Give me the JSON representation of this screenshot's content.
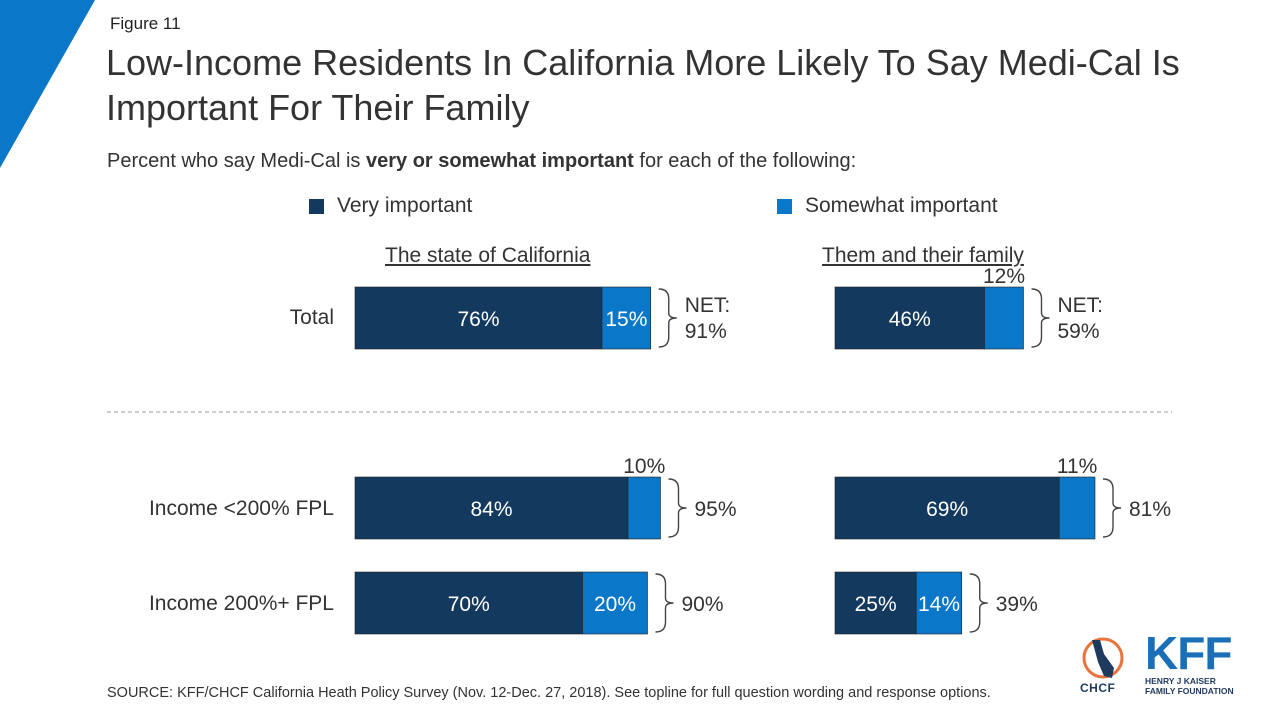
{
  "figure_label": "Figure 11",
  "title": "Low-Income Residents In California More Likely To Say Medi-Cal Is Important For Their Family",
  "subtitle": {
    "prefix": "Percent who say Medi-Cal is ",
    "bold": "very or somewhat important",
    "suffix": " for each of the following:"
  },
  "legend": {
    "very_label": "Very important",
    "somewhat_label": "Somewhat important"
  },
  "colors": {
    "very": "#133a5e",
    "somewhat": "#0b77c8",
    "corner": "#0b77c8"
  },
  "panels": {
    "left_title": "The state of California",
    "right_title": "Them and their family"
  },
  "rows": {
    "total": "Total",
    "low": "Income <200% FPL",
    "high": "Income 200%+ FPL"
  },
  "chart_data": {
    "type": "bar",
    "orientation": "horizontal",
    "stacked": true,
    "categories": [
      "Total",
      "Income <200% FPL",
      "Income 200%+ FPL"
    ],
    "panels": [
      {
        "title": "The state of California",
        "series": [
          {
            "name": "Very important",
            "values": [
              76,
              84,
              70
            ],
            "labels": [
              "76%",
              "84%",
              "70%"
            ]
          },
          {
            "name": "Somewhat important",
            "values": [
              15,
              10,
              20
            ],
            "labels": [
              "15%",
              "10%",
              "20%"
            ]
          }
        ],
        "net_labels": [
          "NET:",
          "",
          ""
        ],
        "net_values": [
          "91%",
          "95%",
          "90%"
        ]
      },
      {
        "title": "Them and their family",
        "series": [
          {
            "name": "Very important",
            "values": [
              46,
              69,
              25
            ],
            "labels": [
              "46%",
              "69%",
              "25%"
            ]
          },
          {
            "name": "Somewhat important",
            "values": [
              12,
              11,
              14
            ],
            "labels": [
              "12%",
              "11%",
              "14%"
            ]
          }
        ],
        "net_labels": [
          "NET:",
          "",
          ""
        ],
        "net_values": [
          "59%",
          "81%",
          "39%"
        ]
      }
    ]
  },
  "source": "SOURCE: KFF/CHCF California Heath Policy Survey (Nov. 12-Dec. 27, 2018). See topline for full question wording and response options.",
  "logos": {
    "chcf": "CHCF",
    "kff": "KFF",
    "kff_sub_1": "HENRY J KAISER",
    "kff_sub_2": "FAMILY FOUNDATION"
  }
}
